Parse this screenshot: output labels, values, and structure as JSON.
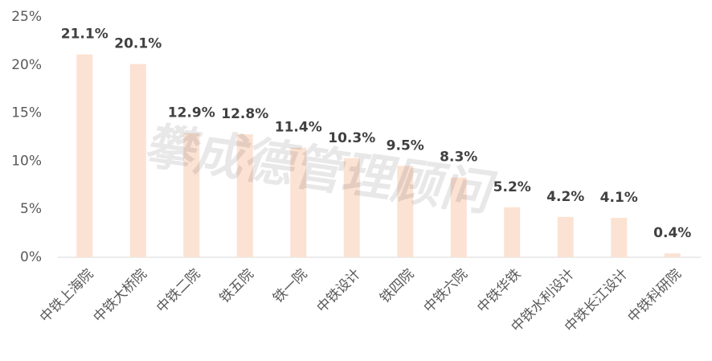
{
  "chart_data": {
    "type": "bar",
    "watermark": "攀成德管理顾问",
    "categories": [
      "中铁上海院",
      "中铁大桥院",
      "中铁二院",
      "铁五院",
      "铁一院",
      "中铁设计",
      "铁四院",
      "中铁六院",
      "中铁华铁",
      "中铁水利设计",
      "中铁长江设计",
      "中铁科研院"
    ],
    "values": [
      21.1,
      20.1,
      12.9,
      12.8,
      11.4,
      10.3,
      9.5,
      8.3,
      5.2,
      4.2,
      4.1,
      0.4
    ],
    "value_labels": [
      "21.1%",
      "20.1%",
      "12.9%",
      "12.8%",
      "11.4%",
      "10.3%",
      "9.5%",
      "8.3%",
      "5.2%",
      "4.2%",
      "4.1%",
      "0.4%"
    ],
    "color": "#fbe2d3",
    "ylim": [
      0,
      25
    ],
    "yticks": [
      {
        "value": 0,
        "label": "0%"
      },
      {
        "value": 5,
        "label": "5%"
      },
      {
        "value": 10,
        "label": "10%"
      },
      {
        "value": 15,
        "label": "15%"
      },
      {
        "value": 20,
        "label": "20%"
      },
      {
        "value": 25,
        "label": "25%"
      }
    ],
    "grid": false
  }
}
